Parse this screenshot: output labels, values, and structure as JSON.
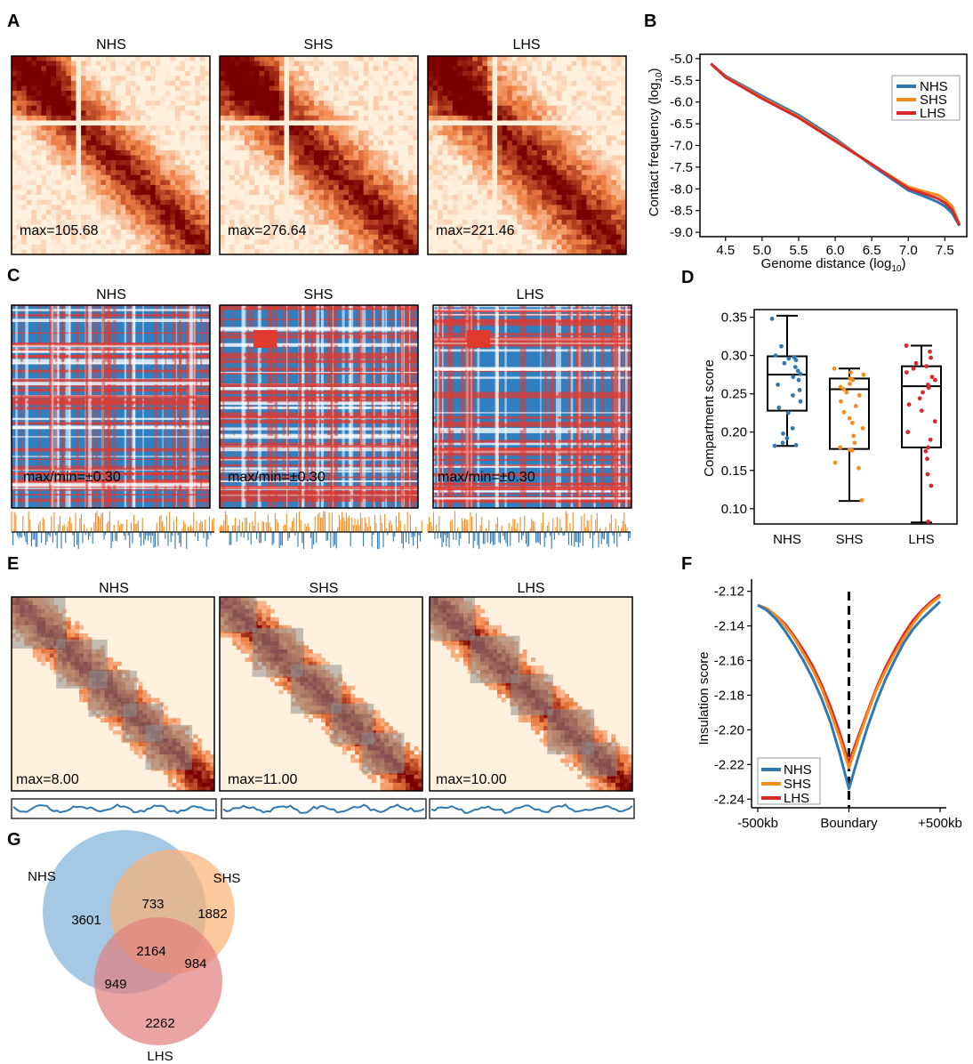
{
  "panel_letters": {
    "a": "A",
    "b": "B",
    "c": "C",
    "d": "D",
    "e": "E",
    "f": "F",
    "g": "G"
  },
  "colors": {
    "NHS": "#2f78b4",
    "SHS": "#f58c1e",
    "LHS": "#d62a2a",
    "heat_dark": "#7a0000",
    "heat_light": "#fff1de",
    "comp_red": "#e03a2f",
    "comp_blue": "#2f7fc1",
    "tad_gray": "#8f8f8f"
  },
  "panel_a": {
    "titles": [
      "NHS",
      "SHS",
      "LHS"
    ],
    "max_labels": [
      "max=105.68",
      "max=276.64",
      "max=221.46"
    ]
  },
  "panel_c": {
    "titles": [
      "NHS",
      "SHS",
      "LHS"
    ],
    "max_labels": [
      "max/min=±0.30",
      "max/min=±0.30",
      "max/min=±0.30"
    ]
  },
  "panel_e": {
    "titles": [
      "NHS",
      "SHS",
      "LHS"
    ],
    "max_labels": [
      "max=8.00",
      "max=11.00",
      "max=10.00"
    ]
  },
  "chart_data": [
    {
      "panel": "B",
      "type": "line",
      "xlabel": "Genome distance (log10)",
      "ylabel": "Contact frequency (log10)",
      "xlim": [
        4.15,
        7.8
      ],
      "ylim": [
        -9.1,
        -4.9
      ],
      "xticks": [
        "4.5",
        "5.0",
        "5.5",
        "6.0",
        "6.5",
        "7.0",
        "7.5"
      ],
      "yticks": [
        "-5.0",
        "-5.5",
        "-6.0",
        "-6.5",
        "-7.0",
        "-7.5",
        "-8.0",
        "-8.5",
        "-9.0"
      ],
      "legend": {
        "position": "top-right",
        "entries": [
          "NHS",
          "SHS",
          "LHS"
        ]
      },
      "x": [
        4.3,
        4.5,
        5.0,
        5.5,
        6.0,
        6.5,
        7.0,
        7.2,
        7.4,
        7.5,
        7.6,
        7.7
      ],
      "series": [
        {
          "name": "NHS",
          "values": [
            -5.12,
            -5.4,
            -5.86,
            -6.3,
            -6.84,
            -7.46,
            -8.03,
            -8.16,
            -8.3,
            -8.4,
            -8.56,
            -8.85
          ]
        },
        {
          "name": "SHS",
          "values": [
            -5.12,
            -5.42,
            -5.9,
            -6.34,
            -6.88,
            -7.44,
            -7.95,
            -8.05,
            -8.14,
            -8.24,
            -8.4,
            -8.82
          ]
        },
        {
          "name": "LHS",
          "values": [
            -5.12,
            -5.43,
            -5.92,
            -6.36,
            -6.9,
            -7.43,
            -7.99,
            -8.1,
            -8.22,
            -8.32,
            -8.48,
            -8.84
          ]
        }
      ]
    },
    {
      "panel": "D",
      "type": "box",
      "ylabel": "Compartment score",
      "categories": [
        "NHS",
        "SHS",
        "LHS"
      ],
      "ylim": [
        0.08,
        0.36
      ],
      "yticks": [
        "0.10",
        "0.15",
        "0.20",
        "0.25",
        "0.30",
        "0.35"
      ],
      "boxes": [
        {
          "name": "NHS",
          "min": 0.182,
          "q1": 0.228,
          "median": 0.275,
          "q3": 0.299,
          "max": 0.352
        },
        {
          "name": "SHS",
          "min": 0.11,
          "q1": 0.178,
          "median": 0.256,
          "q3": 0.27,
          "max": 0.283
        },
        {
          "name": "LHS",
          "min": 0.082,
          "q1": 0.18,
          "median": 0.26,
          "q3": 0.286,
          "max": 0.313
        }
      ],
      "points": [
        [
          0.348,
          0.312,
          0.3,
          0.298,
          0.296,
          0.294,
          0.29,
          0.285,
          0.28,
          0.276,
          0.272,
          0.268,
          0.262,
          0.255,
          0.248,
          0.24,
          0.232,
          0.225,
          0.205,
          0.198,
          0.192,
          0.186,
          0.183,
          0.182
        ],
        [
          0.283,
          0.278,
          0.275,
          0.27,
          0.268,
          0.263,
          0.259,
          0.256,
          0.252,
          0.248,
          0.24,
          0.234,
          0.226,
          0.218,
          0.212,
          0.205,
          0.195,
          0.186,
          0.18,
          0.177,
          0.176,
          0.16,
          0.153,
          0.111
        ],
        [
          0.313,
          0.305,
          0.297,
          0.29,
          0.286,
          0.283,
          0.278,
          0.272,
          0.268,
          0.262,
          0.258,
          0.252,
          0.244,
          0.236,
          0.228,
          0.214,
          0.2,
          0.19,
          0.18,
          0.175,
          0.165,
          0.145,
          0.13,
          0.083
        ]
      ]
    },
    {
      "panel": "F",
      "type": "line",
      "ylabel": "Insulation score",
      "xticks": [
        "-500kb",
        "Boundary",
        "+500kb"
      ],
      "xlim": [
        -500,
        500
      ],
      "ylim": [
        -2.245,
        -2.113
      ],
      "yticks": [
        "-2.12",
        "-2.14",
        "-2.16",
        "-2.18",
        "-2.20",
        "-2.22",
        "-2.24"
      ],
      "legend": {
        "position": "bottom-left",
        "entries": [
          "NHS",
          "SHS",
          "LHS"
        ]
      },
      "x": [
        -500,
        -450,
        -400,
        -350,
        -300,
        -250,
        -200,
        -150,
        -100,
        -50,
        0,
        50,
        100,
        150,
        200,
        250,
        300,
        350,
        400,
        450,
        500
      ],
      "series": [
        {
          "name": "NHS",
          "values": [
            -2.128,
            -2.131,
            -2.136,
            -2.143,
            -2.151,
            -2.16,
            -2.17,
            -2.182,
            -2.196,
            -2.214,
            -2.234,
            -2.216,
            -2.199,
            -2.184,
            -2.171,
            -2.16,
            -2.15,
            -2.142,
            -2.136,
            -2.131,
            -2.126
          ]
        },
        {
          "name": "SHS",
          "values": [
            -2.128,
            -2.13,
            -2.134,
            -2.14,
            -2.147,
            -2.156,
            -2.165,
            -2.176,
            -2.19,
            -2.205,
            -2.222,
            -2.206,
            -2.191,
            -2.177,
            -2.166,
            -2.156,
            -2.147,
            -2.139,
            -2.132,
            -2.127,
            -2.123
          ]
        },
        {
          "name": "LHS",
          "values": [
            -2.128,
            -2.13,
            -2.134,
            -2.139,
            -2.146,
            -2.154,
            -2.163,
            -2.174,
            -2.187,
            -2.202,
            -2.219,
            -2.204,
            -2.19,
            -2.176,
            -2.164,
            -2.154,
            -2.145,
            -2.137,
            -2.131,
            -2.126,
            -2.122
          ]
        }
      ]
    },
    {
      "panel": "G",
      "type": "venn",
      "sets": [
        "NHS",
        "SHS",
        "LHS"
      ],
      "regions": {
        "NHS_only": "3601",
        "SHS_only": "1882",
        "LHS_only": "2262",
        "NHS_SHS": "733",
        "NHS_LHS": "949",
        "SHS_LHS": "984",
        "all": "2164"
      }
    }
  ]
}
